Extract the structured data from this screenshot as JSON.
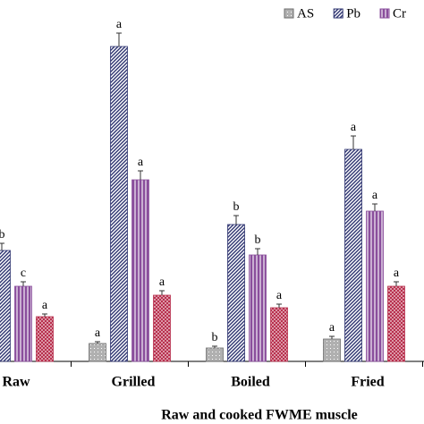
{
  "chart_data": {
    "type": "bar",
    "categories": [
      "Raw",
      "Grilled",
      "Boiled",
      "Fried"
    ],
    "x_label": "Raw and cooked  FWME muscle",
    "ylim": [
      0,
      360
    ],
    "series": [
      {
        "name": "AS",
        "color": "#6e6e6e",
        "pattern": "dots",
        "values": [
          null,
          20,
          15,
          25
        ],
        "errors": [
          null,
          2,
          2,
          3
        ],
        "letters": [
          null,
          "a",
          "b",
          "a"
        ]
      },
      {
        "name": "Pb",
        "color": "#2e3470",
        "pattern": "diagonal",
        "values": [
          124,
          352,
          153,
          237
        ],
        "errors": [
          8,
          15,
          10,
          15
        ],
        "letters": [
          "b",
          "a",
          "b",
          "a"
        ]
      },
      {
        "name": "Cr",
        "color": "#8a4e9c",
        "pattern": "vertical",
        "values": [
          84,
          203,
          119,
          168
        ],
        "errors": [
          5,
          10,
          7,
          8
        ],
        "letters": [
          "c",
          "a",
          "b",
          "a"
        ]
      },
      {
        "color": "#b8304e",
        "pattern": "checker",
        "values": [
          50,
          74,
          60,
          84
        ],
        "errors": [
          3,
          5,
          4,
          5
        ],
        "letters": [
          "a",
          "a",
          "a",
          "a"
        ]
      }
    ],
    "legend": "top-right"
  }
}
